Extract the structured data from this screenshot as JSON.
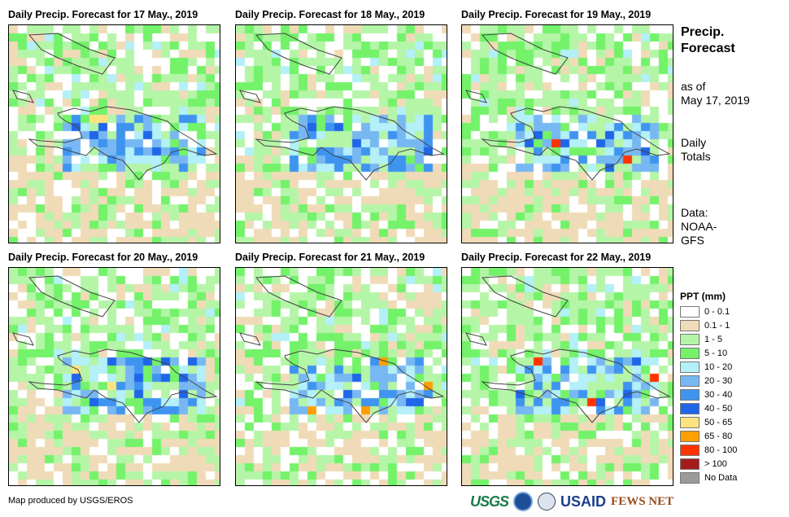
{
  "panels": [
    {
      "title": "Daily Precip. Forecast for 17 May., 2019"
    },
    {
      "title": "Daily Precip. Forecast for 18 May., 2019"
    },
    {
      "title": "Daily Precip. Forecast for 19 May., 2019"
    },
    {
      "title": "Daily Precip. Forecast for 20 May., 2019"
    },
    {
      "title": "Daily Precip. Forecast for 21 May., 2019"
    },
    {
      "title": "Daily Precip. Forecast for 22 May., 2019"
    }
  ],
  "side": {
    "title_1": "Precip.",
    "title_2": "Forecast",
    "asof_1": "as of",
    "asof_2": "May 17, 2019",
    "daily_1": "Daily",
    "daily_2": "Totals",
    "data_1": "Data:",
    "data_2": "NOAA-",
    "data_3": "GFS"
  },
  "legend": {
    "title": "PPT (mm)",
    "items": [
      {
        "label": "0 - 0.1",
        "color": "#ffffff"
      },
      {
        "label": "0.1 - 1",
        "color": "#f0dbb8"
      },
      {
        "label": "1 - 5",
        "color": "#b5f5a8"
      },
      {
        "label": "5 - 10",
        "color": "#73f26a"
      },
      {
        "label": "10 - 20",
        "color": "#b3f0f7"
      },
      {
        "label": "20 - 30",
        "color": "#78b8f2"
      },
      {
        "label": "30 - 40",
        "color": "#3f94f0"
      },
      {
        "label": "40 - 50",
        "color": "#1f66e8"
      },
      {
        "label": "50 - 65",
        "color": "#ffe380"
      },
      {
        "label": "65 - 80",
        "color": "#ff9f00"
      },
      {
        "label": "80 - 100",
        "color": "#ff3300"
      },
      {
        "label": "> 100",
        "color": "#a51c1c"
      },
      {
        "label": "No Data",
        "color": "#9b9b9b"
      }
    ]
  },
  "footer": {
    "credit": "Map produced by USGS/EROS",
    "logos": [
      "USGS",
      "NOAA",
      "USAID",
      "FEWS NET"
    ]
  }
}
